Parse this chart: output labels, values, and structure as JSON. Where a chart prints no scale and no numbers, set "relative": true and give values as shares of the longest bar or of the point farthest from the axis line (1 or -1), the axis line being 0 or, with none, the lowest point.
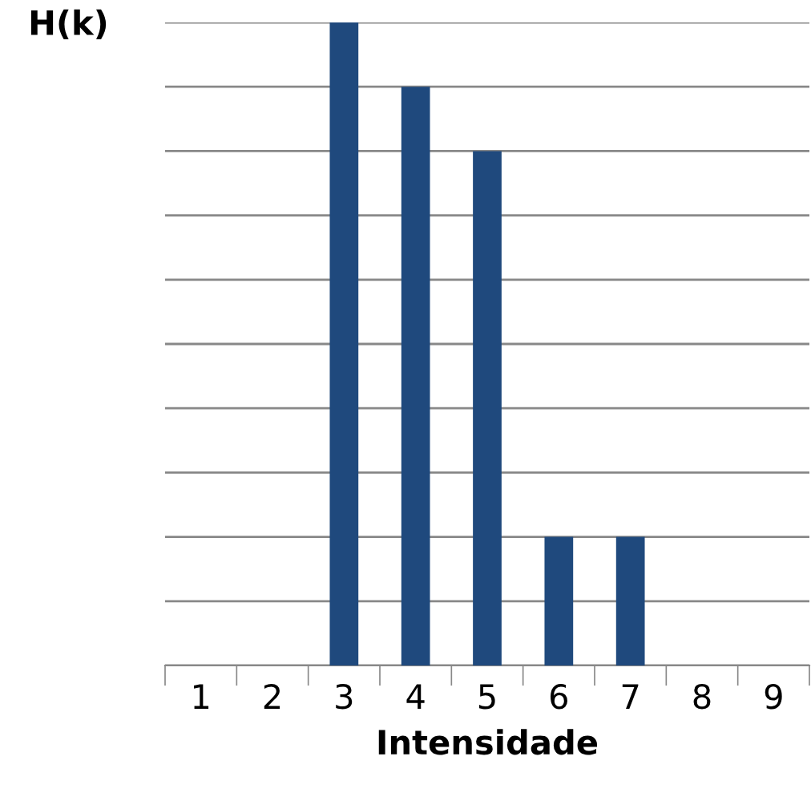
{
  "chart_data": {
    "type": "bar",
    "ylabel": "H(k)",
    "xlabel": "Intensidade",
    "categories": [
      "1",
      "2",
      "3",
      "4",
      "5",
      "6",
      "7",
      "8",
      "9"
    ],
    "values": [
      0,
      0,
      1,
      0.9,
      0.8,
      0.2,
      0.2,
      0,
      0
    ],
    "color": "#1f497d",
    "relative": true,
    "grid": "y"
  }
}
